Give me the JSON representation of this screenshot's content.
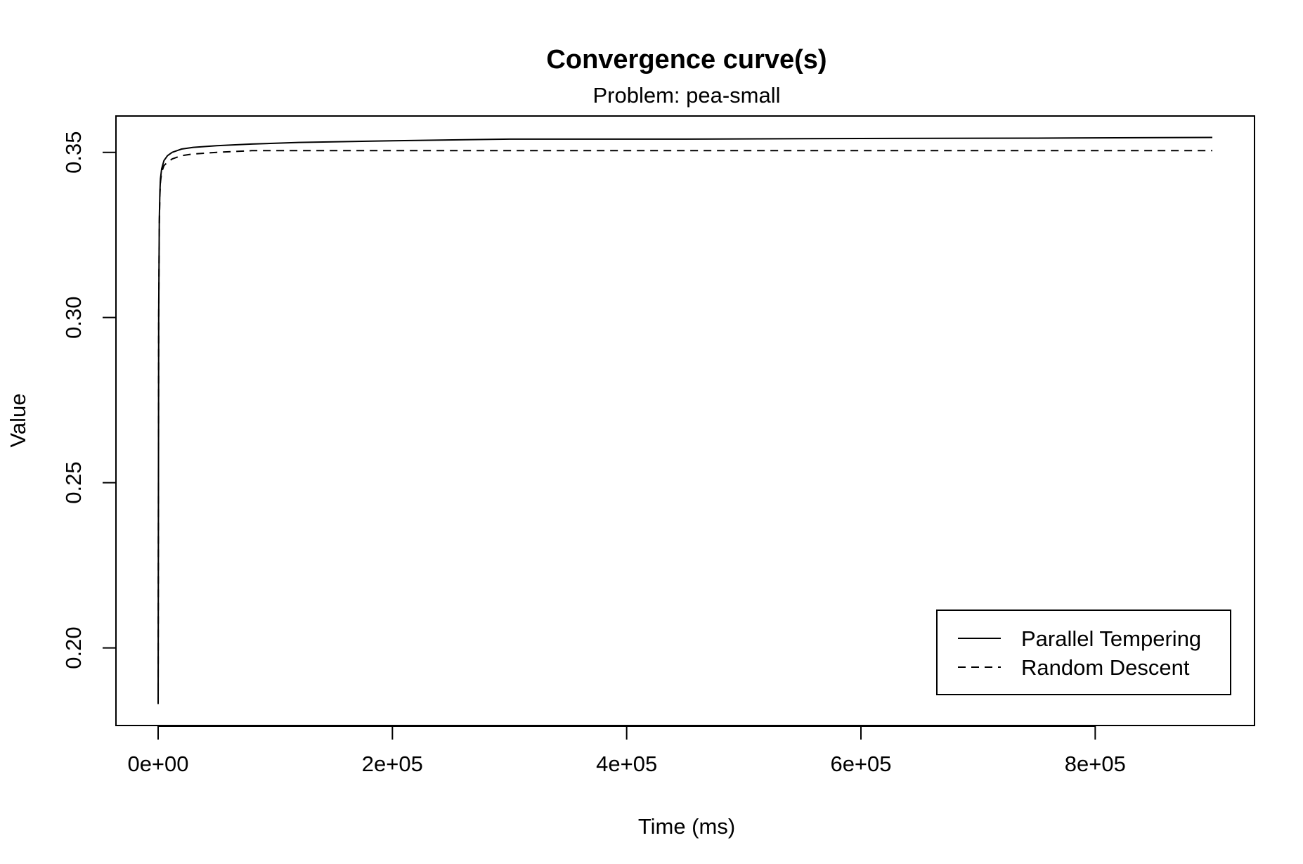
{
  "chart_data": {
    "type": "line",
    "title": "Convergence curve(s)",
    "subtitle": "Problem: pea-small",
    "xlabel": "Time (ms)",
    "ylabel": "Value",
    "xlim": [
      -36000,
      936000
    ],
    "ylim": [
      0.1765,
      0.361
    ],
    "xticks": [
      0,
      200000,
      400000,
      600000,
      800000
    ],
    "xtick_labels": [
      "0e+00",
      "2e+05",
      "4e+05",
      "6e+05",
      "8e+05"
    ],
    "yticks": [
      0.2,
      0.25,
      0.3,
      0.35
    ],
    "ytick_labels": [
      "0.20",
      "0.25",
      "0.30",
      "0.35"
    ],
    "grid": false,
    "legend_position": "bottom-right",
    "series": [
      {
        "name": "Parallel Tempering",
        "line_style": "solid",
        "color": "#000000",
        "x": [
          0,
          500,
          1000,
          1500,
          2000,
          3000,
          5000,
          8000,
          12000,
          20000,
          30000,
          50000,
          80000,
          120000,
          200000,
          300000,
          450000,
          600000,
          750000,
          900000
        ],
        "y": [
          0.183,
          0.3,
          0.33,
          0.338,
          0.342,
          0.345,
          0.3475,
          0.349,
          0.35,
          0.351,
          0.3515,
          0.352,
          0.3525,
          0.353,
          0.3535,
          0.354,
          0.354,
          0.3542,
          0.3543,
          0.3545
        ]
      },
      {
        "name": "Random Descent",
        "line_style": "dashed",
        "color": "#000000",
        "x": [
          0,
          500,
          1000,
          1500,
          2000,
          3000,
          5000,
          8000,
          12000,
          20000,
          30000,
          50000,
          80000,
          120000,
          200000,
          300000,
          450000,
          600000,
          750000,
          900000
        ],
        "y": [
          0.183,
          0.3,
          0.328,
          0.337,
          0.341,
          0.344,
          0.346,
          0.347,
          0.348,
          0.349,
          0.3495,
          0.35,
          0.3505,
          0.3505,
          0.3505,
          0.3505,
          0.3505,
          0.3505,
          0.3505,
          0.3505
        ]
      }
    ]
  }
}
